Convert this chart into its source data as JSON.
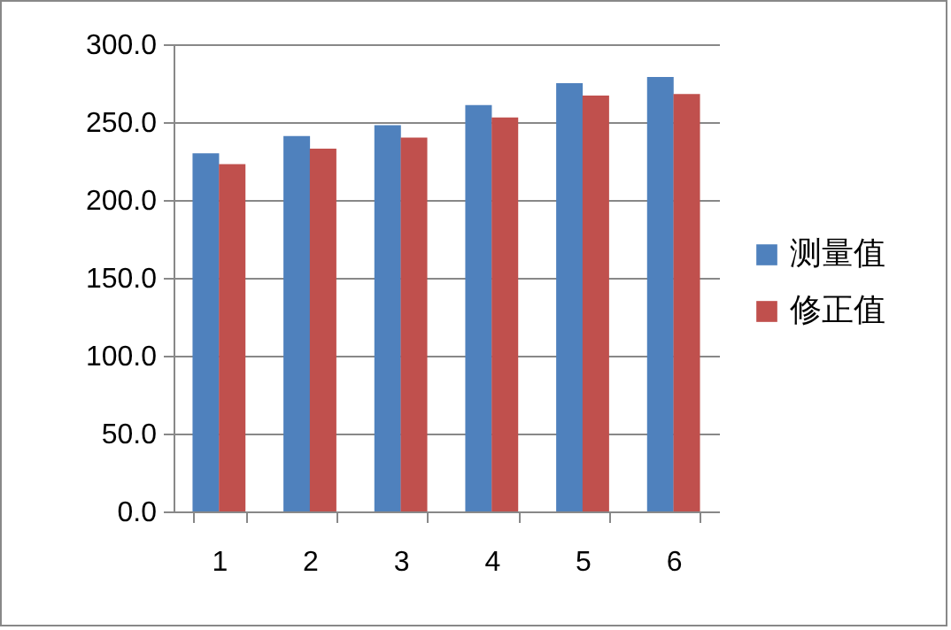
{
  "chart_data": {
    "type": "bar",
    "categories": [
      "1",
      "2",
      "3",
      "4",
      "5",
      "6"
    ],
    "series": [
      {
        "name": "测量值",
        "color": "#4f81bd",
        "values": [
          230,
          241,
          248,
          261,
          275,
          279
        ]
      },
      {
        "name": "修正值",
        "color": "#c0504d",
        "values": [
          223,
          233,
          240,
          253,
          267,
          268
        ]
      }
    ],
    "ylim": [
      0,
      300
    ],
    "yticks": [
      {
        "value": 0,
        "label": "0.0"
      },
      {
        "value": 50,
        "label": "50.0"
      },
      {
        "value": 100,
        "label": "100.0"
      },
      {
        "value": 150,
        "label": "150.0"
      },
      {
        "value": 200,
        "label": "200.0"
      },
      {
        "value": 250,
        "label": "250.0"
      },
      {
        "value": 300,
        "label": "300.0"
      }
    ],
    "grid": "y",
    "legend": "right"
  }
}
